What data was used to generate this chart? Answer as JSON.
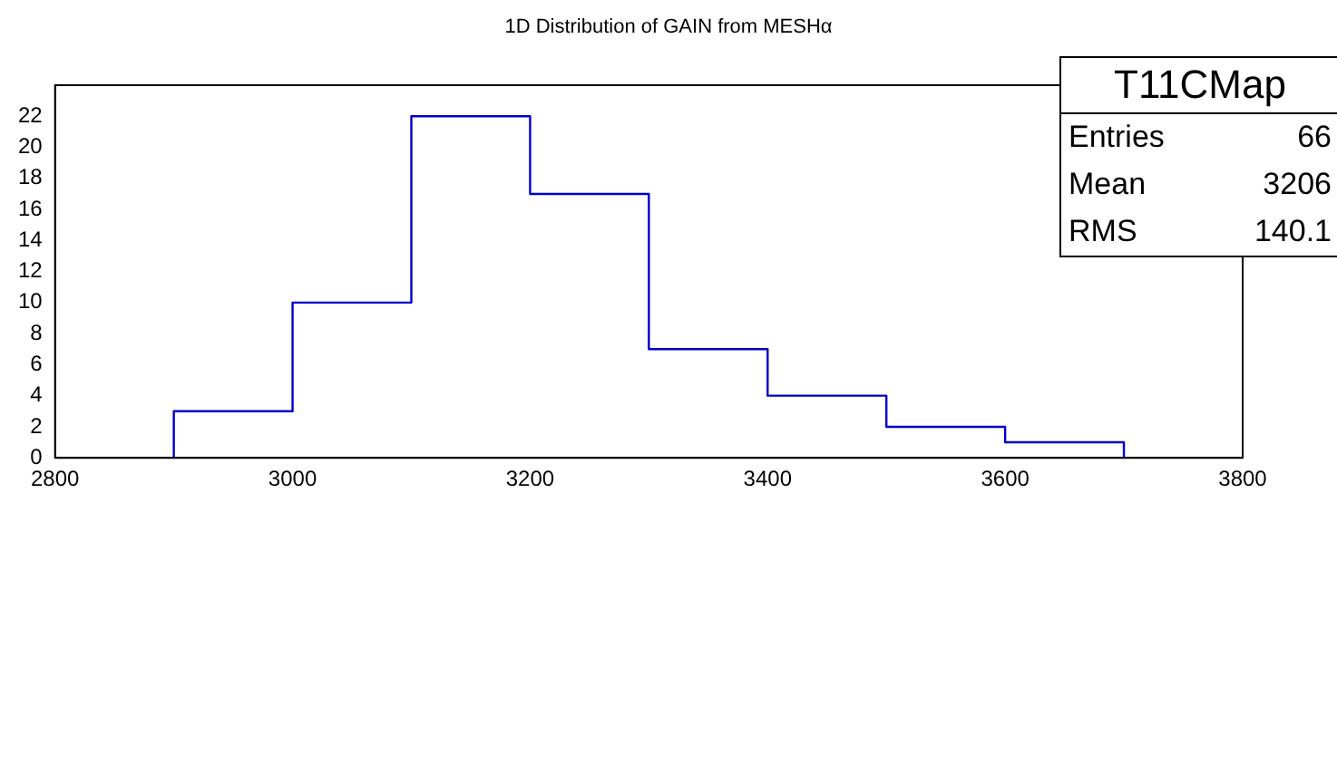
{
  "chart_data": {
    "type": "histogram",
    "title": "1D Distribution of GAIN from MESHα",
    "bins": [
      2900,
      3000,
      3100,
      3200,
      3300,
      3400,
      3500,
      3600,
      3700
    ],
    "values": [
      3,
      10,
      22,
      17,
      7,
      4,
      2,
      1
    ],
    "color": "#0000cc",
    "xlim": [
      2800,
      3800
    ],
    "xticks": [
      2800,
      3000,
      3200,
      3400,
      3600,
      3800
    ],
    "ylim": [
      0,
      24
    ],
    "yticks": [
      0,
      2,
      4,
      6,
      8,
      10,
      12,
      14,
      16,
      18,
      20,
      22
    ],
    "grid": false,
    "legend": false,
    "annotations": [
      "T11CMap",
      "Entries 66",
      "Mean 3206",
      "RMS 140.1"
    ]
  }
}
